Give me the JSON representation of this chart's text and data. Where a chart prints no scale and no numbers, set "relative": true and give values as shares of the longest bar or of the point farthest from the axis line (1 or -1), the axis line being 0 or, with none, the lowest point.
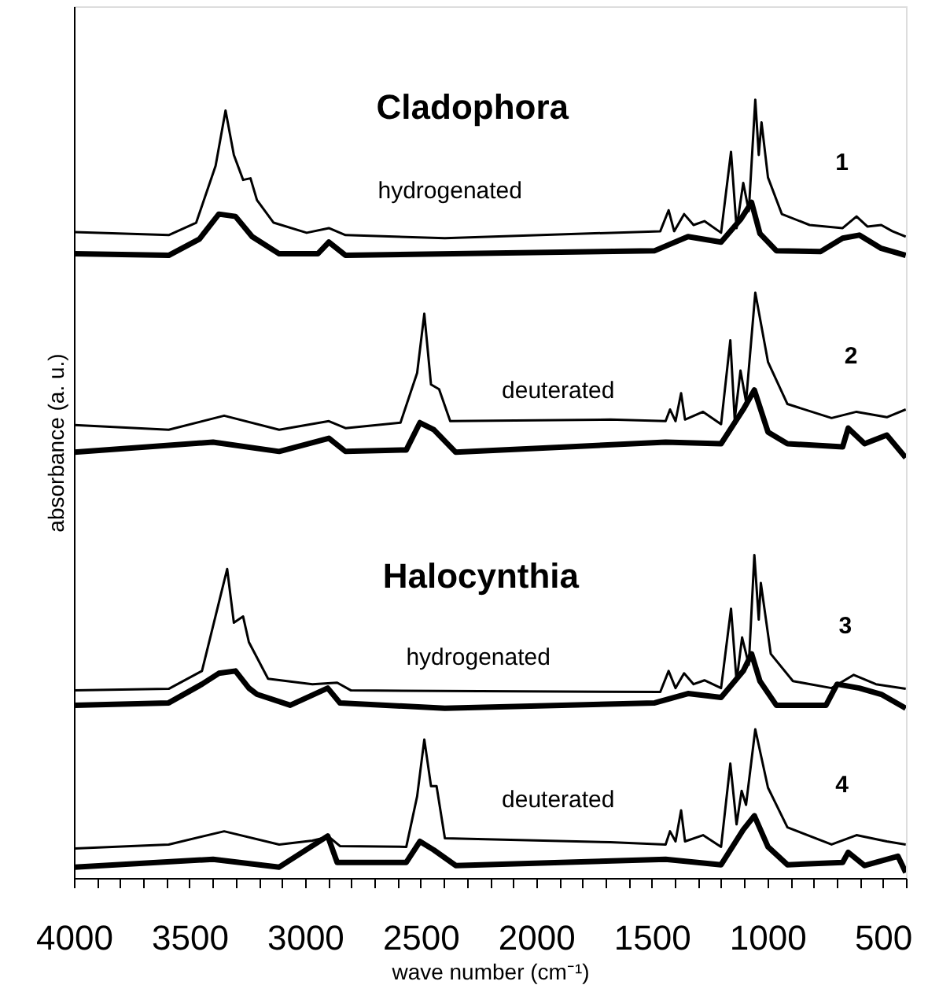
{
  "chart_data": {
    "type": "line",
    "relative": true,
    "xlabel": "wave number (cm⁻¹)",
    "ylabel": "absorbance (a. u.)",
    "xlim": [
      4000,
      400
    ],
    "xticks": [
      4000,
      {
        "value": 3900,
        "label": null
      },
      {
        "value": 3800,
        "label": null
      },
      {
        "value": 3700,
        "label": null
      },
      {
        "value": 3600,
        "label": null
      },
      3500,
      {
        "value": 3400,
        "label": null
      },
      {
        "value": 3300,
        "label": null
      },
      {
        "value": 3200,
        "label": null
      },
      {
        "value": 3100,
        "label": null
      },
      3000,
      {
        "value": 2900,
        "label": null
      },
      {
        "value": 2800,
        "label": null
      },
      {
        "value": 2700,
        "label": null
      },
      {
        "value": 2600,
        "label": null
      },
      2500,
      {
        "value": 2400,
        "label": null
      },
      {
        "value": 2300,
        "label": null
      },
      {
        "value": 2200,
        "label": null
      },
      {
        "value": 2100,
        "label": null
      },
      2000,
      {
        "value": 1900,
        "label": null
      },
      {
        "value": 1800,
        "label": null
      },
      {
        "value": 1700,
        "label": null
      },
      {
        "value": 1600,
        "label": null
      },
      1500,
      {
        "value": 1400,
        "label": null
      },
      {
        "value": 1300,
        "label": null
      },
      {
        "value": 1200,
        "label": null
      },
      {
        "value": 1100,
        "label": null
      },
      1000,
      {
        "value": 900,
        "label": null
      },
      {
        "value": 800,
        "label": null
      },
      {
        "value": 700,
        "label": null
      },
      {
        "value": 600,
        "label": null
      },
      500,
      {
        "value": 400,
        "label": null
      }
    ],
    "grid": false,
    "marker": "none",
    "line_style": "solid",
    "series": [
      {
        "color": "#000000",
        "x": [
          3997,
          3590,
          3471,
          3387,
          3344,
          3308,
          3268,
          3236,
          3208,
          3136,
          2993,
          2897,
          2825,
          2395,
          1463,
          1427,
          1403,
          1360,
          1319,
          1272,
          1200,
          1157,
          1133,
          1104,
          1080,
          1052,
          1037,
          1025,
          997,
          937,
          817,
          674,
          614,
          567,
          507,
          459,
          401
        ],
        "values": [
          0.83,
          0.826,
          0.842,
          0.915,
          0.986,
          0.929,
          0.897,
          0.899,
          0.871,
          0.842,
          0.829,
          0.835,
          0.826,
          0.822,
          0.831,
          0.858,
          0.831,
          0.853,
          0.839,
          0.844,
          0.829,
          0.933,
          0.835,
          0.893,
          0.857,
          1.0,
          0.929,
          0.971,
          0.9,
          0.853,
          0.839,
          0.835,
          0.85,
          0.837,
          0.839,
          0.831,
          0.824
        ]
      },
      {
        "color": "#000000",
        "x": [
          3997,
          3590,
          3457,
          3373,
          3301,
          3229,
          3112,
          2945,
          2897,
          2825,
          1487,
          1343,
          1200,
          1116,
          1068,
          1032,
          961,
          769,
          674,
          602,
          507,
          401
        ],
        "values": [
          0.802,
          0.8,
          0.821,
          0.853,
          0.85,
          0.824,
          0.802,
          0.802,
          0.817,
          0.8,
          0.806,
          0.824,
          0.817,
          0.846,
          0.868,
          0.828,
          0.806,
          0.805,
          0.822,
          0.826,
          0.809,
          0.8
        ]
      },
      {
        "color": "#000000",
        "x": [
          3997,
          3590,
          3350,
          3112,
          2897,
          2825,
          2587,
          2515,
          2484,
          2455,
          2420,
          2372,
          1679,
          1440,
          1421,
          1397,
          1373,
          1356,
          1278,
          1200,
          1160,
          1141,
          1116,
          1092,
          1052,
          997,
          913,
          722,
          614,
          483,
          401
        ],
        "values": [
          0.582,
          0.576,
          0.594,
          0.576,
          0.587,
          0.578,
          0.585,
          0.649,
          0.725,
          0.634,
          0.628,
          0.587,
          0.589,
          0.587,
          0.602,
          0.587,
          0.623,
          0.589,
          0.599,
          0.583,
          0.691,
          0.589,
          0.652,
          0.612,
          0.752,
          0.663,
          0.609,
          0.591,
          0.599,
          0.592,
          0.602
        ]
      },
      {
        "color": "#000000",
        "x": [
          3997,
          3398,
          3112,
          2897,
          2825,
          2562,
          2503,
          2443,
          2348,
          1440,
          1200,
          1104,
          1056,
          997,
          913,
          674,
          650,
          579,
          483,
          401
        ],
        "values": [
          0.547,
          0.56,
          0.548,
          0.565,
          0.548,
          0.55,
          0.585,
          0.576,
          0.547,
          0.56,
          0.558,
          0.602,
          0.627,
          0.573,
          0.558,
          0.554,
          0.578,
          0.558,
          0.569,
          0.54
        ]
      },
      {
        "color": "#000000",
        "x": [
          3997,
          3590,
          3446,
          3337,
          3308,
          3268,
          3243,
          3160,
          2968,
          2861,
          2801,
          1463,
          1427,
          1397,
          1360,
          1319,
          1272,
          1200,
          1157,
          1133,
          1109,
          1080,
          1056,
          1037,
          1028,
          985,
          889,
          722,
          626,
          530,
          401
        ],
        "values": [
          0.241,
          0.243,
          0.266,
          0.397,
          0.328,
          0.336,
          0.303,
          0.256,
          0.249,
          0.251,
          0.241,
          0.239,
          0.266,
          0.244,
          0.263,
          0.249,
          0.254,
          0.244,
          0.346,
          0.253,
          0.309,
          0.274,
          0.415,
          0.332,
          0.379,
          0.288,
          0.253,
          0.244,
          0.261,
          0.249,
          0.243
        ]
      },
      {
        "color": "#000000",
        "x": [
          3997,
          3590,
          3446,
          3373,
          3301,
          3243,
          3208,
          3064,
          2902,
          2849,
          2395,
          1487,
          1343,
          1200,
          1104,
          1068,
          1032,
          961,
          746,
          698,
          602,
          507,
          401
        ],
        "values": [
          0.222,
          0.225,
          0.249,
          0.263,
          0.266,
          0.244,
          0.236,
          0.222,
          0.244,
          0.225,
          0.218,
          0.225,
          0.237,
          0.232,
          0.266,
          0.288,
          0.253,
          0.222,
          0.222,
          0.249,
          0.244,
          0.236,
          0.218
        ]
      },
      {
        "color": "#000000",
        "x": [
          3997,
          3590,
          3350,
          3112,
          2968,
          2897,
          2849,
          2562,
          2515,
          2484,
          2455,
          2431,
          2395,
          1679,
          1440,
          1421,
          1397,
          1373,
          1356,
          1278,
          1200,
          1160,
          1133,
          1111,
          1092,
          1052,
          997,
          913,
          722,
          614,
          483,
          401
        ],
        "values": [
          0.038,
          0.043,
          0.06,
          0.043,
          0.048,
          0.053,
          0.041,
          0.04,
          0.105,
          0.178,
          0.118,
          0.118,
          0.051,
          0.046,
          0.043,
          0.06,
          0.047,
          0.087,
          0.047,
          0.055,
          0.04,
          0.147,
          0.069,
          0.112,
          0.094,
          0.191,
          0.116,
          0.065,
          0.043,
          0.055,
          0.047,
          0.043
        ]
      },
      {
        "color": "#000000",
        "x": [
          3997,
          3398,
          3112,
          2902,
          2861,
          2562,
          2503,
          2443,
          2348,
          1440,
          1200,
          1104,
          1056,
          997,
          913,
          674,
          650,
          579,
          435,
          401
        ],
        "values": [
          0.014,
          0.024,
          0.014,
          0.054,
          0.02,
          0.02,
          0.047,
          0.036,
          0.016,
          0.024,
          0.017,
          0.062,
          0.08,
          0.04,
          0.017,
          0.02,
          0.033,
          0.016,
          0.028,
          0.007
        ]
      }
    ],
    "annotations": [
      "Cladophora",
      "hydrogenated",
      "1",
      "deuterated",
      "2",
      "Halocynthia",
      "hydrogenated",
      "3",
      "deuterated",
      "4"
    ]
  }
}
